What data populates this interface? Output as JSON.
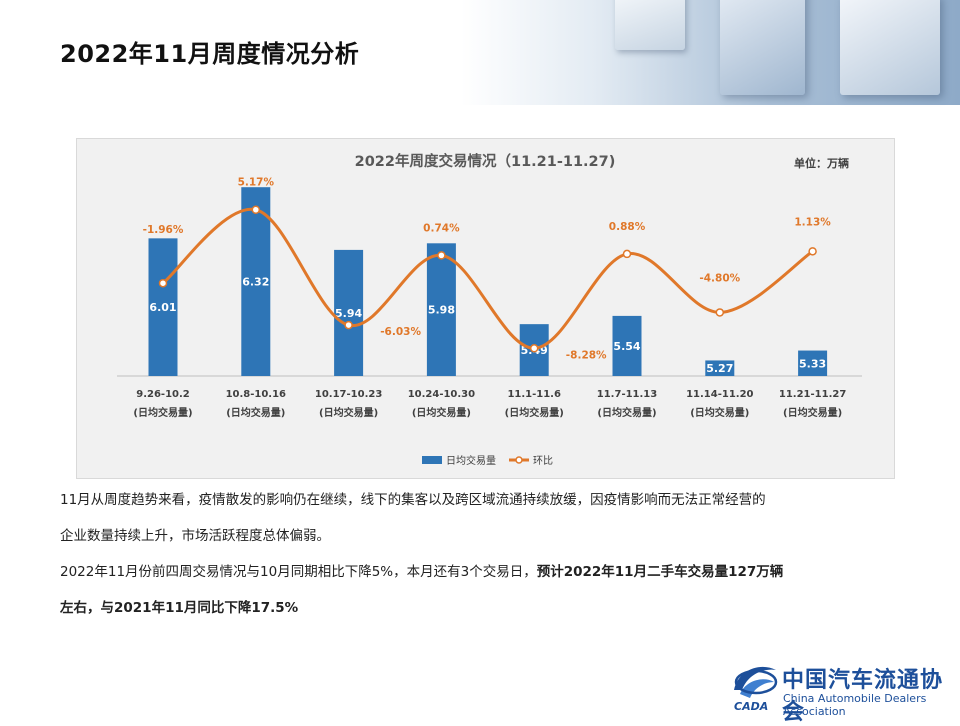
{
  "page": {
    "title": "2022年11月周度情况分析"
  },
  "colors": {
    "bar": "#2e75b6",
    "line": "#e0782a",
    "label": "#e0782a",
    "logo": "#1d4f9a"
  },
  "chart_data": {
    "type": "bar",
    "title": "2022年周度交易情况（11.21-11.27)",
    "unit": "单位：万辆",
    "categories": [
      "9.26-10.2",
      "10.8-10.16",
      "10.17-10.23",
      "10.24-10.30",
      "11.1-11.6",
      "11.7-11.13",
      "11.14-11.20",
      "11.21-11.27"
    ],
    "category_sublabels": [
      "(日均交易量)",
      "(日均交易量)",
      "(日均交易量)",
      "(日均交易量)",
      "(日均交易量)",
      "(日均交易量)",
      "(日均交易量)",
      "(日均交易量)"
    ],
    "series": [
      {
        "name": "日均交易量",
        "type": "bar",
        "values": [
          6.01,
          6.32,
          5.94,
          5.98,
          5.49,
          5.54,
          5.27,
          5.33
        ],
        "labels": [
          "6.01",
          "6.32",
          "5.94",
          "5.98",
          "5.49",
          "5.54",
          "5.27",
          "5.33"
        ]
      },
      {
        "name": "环比",
        "type": "line",
        "values": [
          -1.96,
          5.17,
          -6.03,
          0.74,
          -8.28,
          0.88,
          -4.8,
          1.13
        ],
        "labels": [
          "-1.96%",
          "5.17%",
          "-6.03%",
          "0.74%",
          "-8.28%",
          "0.88%",
          "-4.80%",
          "1.13%"
        ]
      }
    ],
    "legend": [
      "日均交易量",
      "环比"
    ],
    "legend_position": "bottom",
    "grid": false
  },
  "text": {
    "p1": "11月从周度趋势来看，疫情散发的影响仍在继续，线下的集客以及跨区域流通持续放缓，因疫情影响而无法正常经营的",
    "p2": "企业数量持续上升，市场活跃程度总体偏弱。",
    "p3_normal": "2022年11月份前四周交易情况与10月同期相比下降5%，本月还有3个交易日，",
    "p3_bold": "预计2022年11月二手车交易量127万辆",
    "p4_bold": "左右，与2021年11月同比下降17.5%"
  },
  "logo": {
    "cn": "中国汽车流通协会",
    "en": "China Automobile Dealers Association",
    "mark": "CADA"
  }
}
